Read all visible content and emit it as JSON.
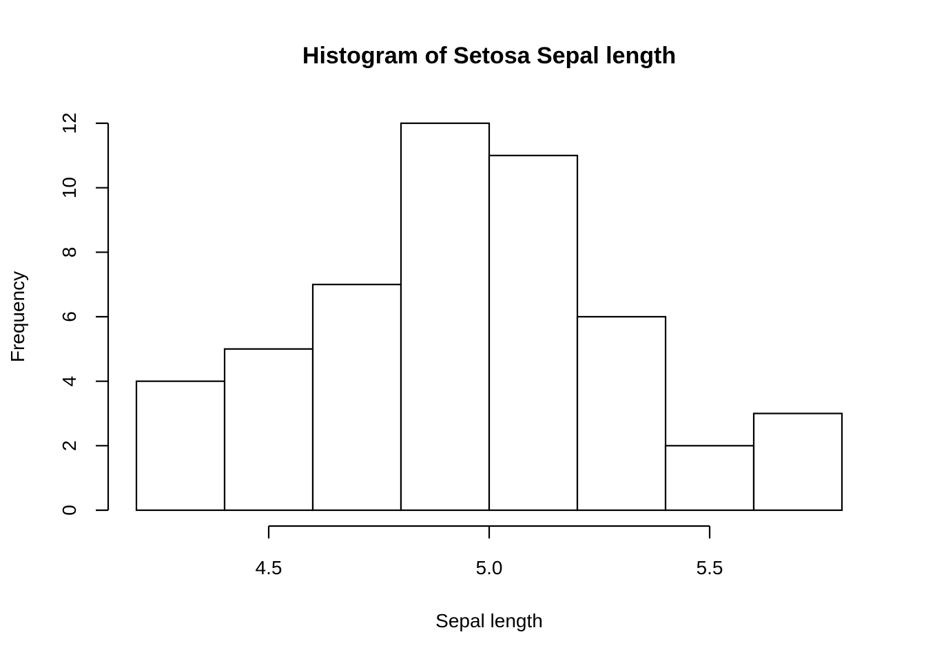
{
  "chart_data": {
    "type": "bar",
    "histogram": true,
    "title": "Histogram of Setosa Sepal length",
    "xlabel": "Sepal length",
    "ylabel": "Frequency",
    "bin_edges": [
      4.2,
      4.4,
      4.6,
      4.8,
      5.0,
      5.2,
      5.4,
      5.6,
      5.8
    ],
    "values": [
      4,
      5,
      7,
      12,
      11,
      6,
      2,
      3
    ],
    "xlim": [
      4.2,
      5.8
    ],
    "ylim": [
      0,
      12
    ],
    "x_ticks": [
      4.5,
      5.0,
      5.5
    ],
    "x_tick_labels": [
      "4.5",
      "5.0",
      "5.5"
    ],
    "y_ticks": [
      0,
      2,
      4,
      6,
      8,
      10,
      12
    ],
    "y_tick_labels": [
      "0",
      "2",
      "4",
      "6",
      "8",
      "10",
      "12"
    ],
    "grid": false,
    "bar_fill": "#ffffff",
    "bar_stroke": "#000000"
  }
}
